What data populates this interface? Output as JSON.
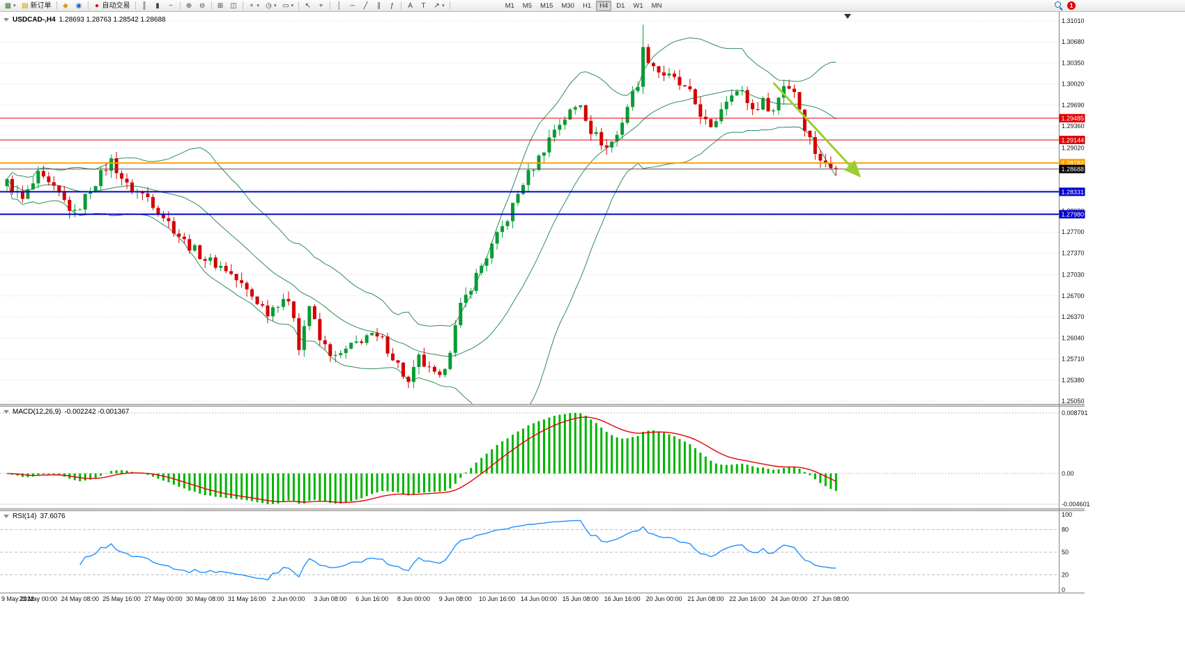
{
  "toolbar": {
    "notification_count": "1",
    "new_order_label": "新订单",
    "autotrading_label": "自动交易",
    "items": [
      {
        "name": "new-chart",
        "glyph": "▦",
        "color": "#2e7d32",
        "caret": true
      },
      {
        "name": "new-order",
        "glyph": "▤",
        "color": "#c99700",
        "label": "新订单"
      },
      {
        "sep": true
      },
      {
        "name": "market-watch",
        "glyph": "◆",
        "color": "#d4a017"
      },
      {
        "name": "profiles",
        "glyph": "◉",
        "color": "#1565c0"
      },
      {
        "sep": true
      },
      {
        "name": "autotrading",
        "glyph": "●",
        "color": "#cc1111",
        "label": "自动交易"
      },
      {
        "sep": true
      },
      {
        "name": "bar-chart",
        "glyph": "║",
        "color": "#444"
      },
      {
        "name": "candlestick-chart",
        "glyph": "▮",
        "color": "#444"
      },
      {
        "name": "line-chart",
        "glyph": "~",
        "color": "#444"
      },
      {
        "sep": true
      },
      {
        "name": "zoom-in",
        "glyph": "⊕",
        "color": "#444"
      },
      {
        "name": "zoom-out",
        "glyph": "⊖",
        "color": "#444"
      },
      {
        "sep": true
      },
      {
        "name": "tile-windows",
        "glyph": "⊞",
        "color": "#444"
      },
      {
        "name": "cascade-windows",
        "glyph": "◫",
        "color": "#444"
      },
      {
        "sep": true
      },
      {
        "name": "indicators",
        "glyph": "+",
        "color": "#0a8f08",
        "caret": true
      },
      {
        "name": "periods",
        "glyph": "◷",
        "color": "#444",
        "caret": true
      },
      {
        "name": "templates",
        "glyph": "▭",
        "color": "#444",
        "caret": true
      },
      {
        "sep": true
      },
      {
        "name": "cursor",
        "glyph": "↖",
        "color": "#444"
      },
      {
        "name": "crossh air",
        "glyph": "+",
        "color": "#444"
      },
      {
        "sep": true
      },
      {
        "name": "vertical-line",
        "glyph": "│",
        "color": "#444"
      },
      {
        "name": "horizontal-line",
        "glyph": "─",
        "color": "#444"
      },
      {
        "name": "trendline",
        "glyph": "╱",
        "color": "#444"
      },
      {
        "name": "equidistant-channel",
        "glyph": "∥",
        "color": "#444"
      },
      {
        "name": "fibonacci",
        "glyph": "ƒ",
        "color": "#444"
      },
      {
        "sep": true
      },
      {
        "name": "text",
        "glyph": "A",
        "color": "#444"
      },
      {
        "name": "text-label",
        "glyph": "T",
        "color": "#444"
      },
      {
        "name": "arrows",
        "glyph": "↗",
        "color": "#444",
        "caret": true
      },
      {
        "sep": true
      }
    ],
    "timeframes": [
      {
        "label": "M1"
      },
      {
        "label": "M5"
      },
      {
        "label": "M15"
      },
      {
        "label": "M30"
      },
      {
        "label": "H1"
      },
      {
        "label": "H4",
        "active": true
      },
      {
        "label": "D1"
      },
      {
        "label": "W1"
      },
      {
        "label": "MN"
      }
    ]
  },
  "chart_data": {
    "type": "candlestick",
    "symbol_period": "USDCAD-,H4",
    "ohlc_text": "1.28693 1.28763 1.28542 1.28688",
    "open": "1.28693",
    "high": "1.28763",
    "low": "1.28542",
    "close": "1.28688",
    "up_color": "#089c35",
    "down_color": "#d40000",
    "price_axis": {
      "min": 1.2505,
      "max": 1.3101,
      "labels": [
        "1.31010",
        "1.30680",
        "1.30350",
        "1.30020",
        "1.29690",
        "1.29360",
        "1.29020",
        "1.28690",
        "1.28360",
        "1.28030",
        "1.27700",
        "1.27370",
        "1.27030",
        "1.26700",
        "1.26370",
        "1.26040",
        "1.25710",
        "1.25380",
        "1.25050"
      ]
    },
    "time_axis": {
      "first_label": "9 May 2022",
      "first_label_index": 6,
      "label_step": 8,
      "labels": [
        "23 May 00:00",
        "24 May 08:00",
        "25 May 16:00",
        "27 May 00:00",
        "30 May 08:00",
        "31 May 16:00",
        "2 Jun 00:00",
        "3 Jun 08:00",
        "6 Jun 16:00",
        "8 Jun 00:00",
        "9 Jun 08:00",
        "10 Jun 16:00",
        "14 Jun 00:00",
        "15 Jun 08:00",
        "16 Jun 16:00",
        "20 Jun 00:00",
        "21 Jun 08:00",
        "22 Jun 16:00",
        "24 Jun 00:00",
        "27 Jun 08:00"
      ]
    },
    "candles": {
      "count": 160,
      "spike_index": 122,
      "spike_high": 1.3095,
      "spike_close": 1.306,
      "last_close": 1.28688,
      "anchors": [
        [
          0,
          1.2848
        ],
        [
          3,
          1.282
        ],
        [
          6,
          1.2858
        ],
        [
          10,
          1.2828
        ],
        [
          13,
          1.2798
        ],
        [
          16,
          1.2838
        ],
        [
          20,
          1.2882
        ],
        [
          23,
          1.2842
        ],
        [
          27,
          1.2825
        ],
        [
          30,
          1.2795
        ],
        [
          34,
          1.2755
        ],
        [
          38,
          1.2728
        ],
        [
          42,
          1.2712
        ],
        [
          46,
          1.2678
        ],
        [
          50,
          1.2645
        ],
        [
          53,
          1.2668
        ],
        [
          55,
          1.264
        ],
        [
          56,
          1.2592
        ],
        [
          58,
          1.2655
        ],
        [
          60,
          1.26
        ],
        [
          63,
          1.2572
        ],
        [
          66,
          1.259
        ],
        [
          69,
          1.2608
        ],
        [
          72,
          1.26
        ],
        [
          75,
          1.2562
        ],
        [
          77,
          1.2532
        ],
        [
          79,
          1.2572
        ],
        [
          81,
          1.2552
        ],
        [
          83,
          1.2538
        ],
        [
          85,
          1.2588
        ],
        [
          87,
          1.2652
        ],
        [
          90,
          1.2702
        ],
        [
          93,
          1.2748
        ],
        [
          96,
          1.2792
        ],
        [
          99,
          1.2848
        ],
        [
          102,
          1.2886
        ],
        [
          105,
          1.2932
        ],
        [
          108,
          1.2958
        ],
        [
          110,
          1.2972
        ],
        [
          112,
          1.293
        ],
        [
          115,
          1.2902
        ],
        [
          117,
          1.2922
        ],
        [
          119,
          1.2968
        ],
        [
          121,
          1.3005
        ],
        [
          122,
          1.306
        ],
        [
          123,
          1.3042
        ],
        [
          125,
          1.3022
        ],
        [
          128,
          1.3008
        ],
        [
          131,
          1.2986
        ],
        [
          133,
          1.2956
        ],
        [
          135,
          1.2928
        ],
        [
          137,
          1.2966
        ],
        [
          139,
          1.2992
        ],
        [
          141,
          1.2988
        ],
        [
          143,
          1.2962
        ],
        [
          145,
          1.2974
        ],
        [
          147,
          1.296
        ],
        [
          149,
          1.3002
        ],
        [
          151,
          1.2992
        ],
        [
          153,
          1.2936
        ],
        [
          155,
          1.2896
        ],
        [
          157,
          1.2874
        ],
        [
          159,
          1.28688
        ]
      ]
    },
    "bollinger": {
      "period": 20,
      "deviation": 2,
      "color": "#2e8b57"
    },
    "hlines": [
      {
        "price": 1.29485,
        "label": "1.29485",
        "color": "#e00000",
        "width": 1
      },
      {
        "price": 1.29144,
        "label": "1.29144",
        "color": "#e00000",
        "width": 1
      },
      {
        "price": 1.28782,
        "label": "1.28782",
        "color": "#ffa200",
        "width": 2
      },
      {
        "price": 1.28331,
        "label": "1.28331",
        "color": "#0000cd",
        "width": 2
      },
      {
        "price": 1.2798,
        "label": "1.27980",
        "color": "#0000cd",
        "width": 2
      }
    ],
    "current_price": {
      "label": "1.28688",
      "price": 1.28688,
      "line_color": "#555555",
      "tag_bg": "#000000"
    },
    "arrow": {
      "from_index": 147,
      "from_price": 1.3004,
      "to_index": 163.5,
      "to_price": 1.2858,
      "color": "#9acd32"
    },
    "macd": {
      "name": "MACD(12,26,9)",
      "values": "-0.002242 -0.001367",
      "fast": 12,
      "slow": 26,
      "signal": 9,
      "axis_labels": [
        "0.008791",
        "0.00",
        "-0.004601"
      ],
      "histogram_color": "#00b400",
      "signal_color": "#e60000"
    },
    "rsi": {
      "name": "RSI(14)",
      "value": "37.6076",
      "period": 14,
      "color": "#1e90ff",
      "levels": [
        80,
        50,
        20
      ],
      "axis_labels": [
        "100",
        "80",
        "50",
        "20",
        "0"
      ]
    }
  }
}
